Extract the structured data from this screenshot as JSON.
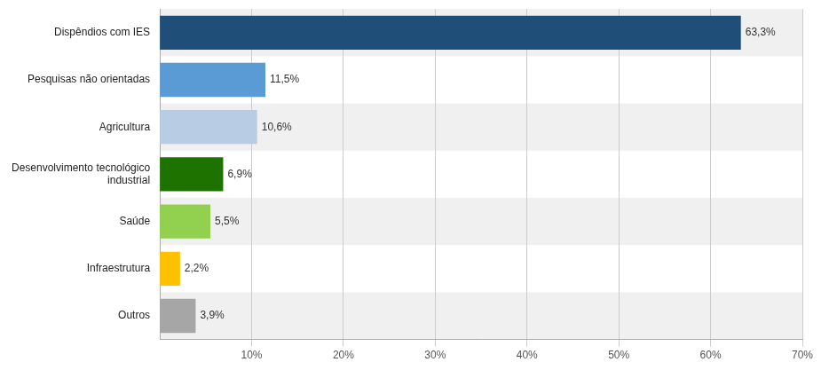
{
  "chart_data": {
    "type": "bar",
    "orientation": "horizontal",
    "categories": [
      "Dispêndios com IES",
      "Pesquisas não orientadas",
      "Agricultura",
      "Desenvolvimento tecnológico\nindustrial",
      "Saúde",
      "Infraestrutura",
      "Outros"
    ],
    "values": [
      63.3,
      11.5,
      10.6,
      6.9,
      5.5,
      2.2,
      3.9
    ],
    "value_labels": [
      "63,3%",
      "11,5%",
      "10,6%",
      "6,9%",
      "5,5%",
      "2,2%",
      "3,9%"
    ],
    "colors": [
      "#1f4e79",
      "#5b9bd5",
      "#b8cce4",
      "#1e7300",
      "#92d050",
      "#ffc000",
      "#a6a6a6"
    ],
    "xlim": [
      0,
      70
    ],
    "xticks": [
      {
        "value": 10,
        "label": "10%"
      },
      {
        "value": 20,
        "label": "20%"
      },
      {
        "value": 30,
        "label": "30%"
      },
      {
        "value": 40,
        "label": "40%"
      },
      {
        "value": 50,
        "label": "50%"
      },
      {
        "value": 60,
        "label": "60%"
      },
      {
        "value": 70,
        "label": "70%"
      }
    ],
    "grid": true,
    "data_labels": true
  }
}
